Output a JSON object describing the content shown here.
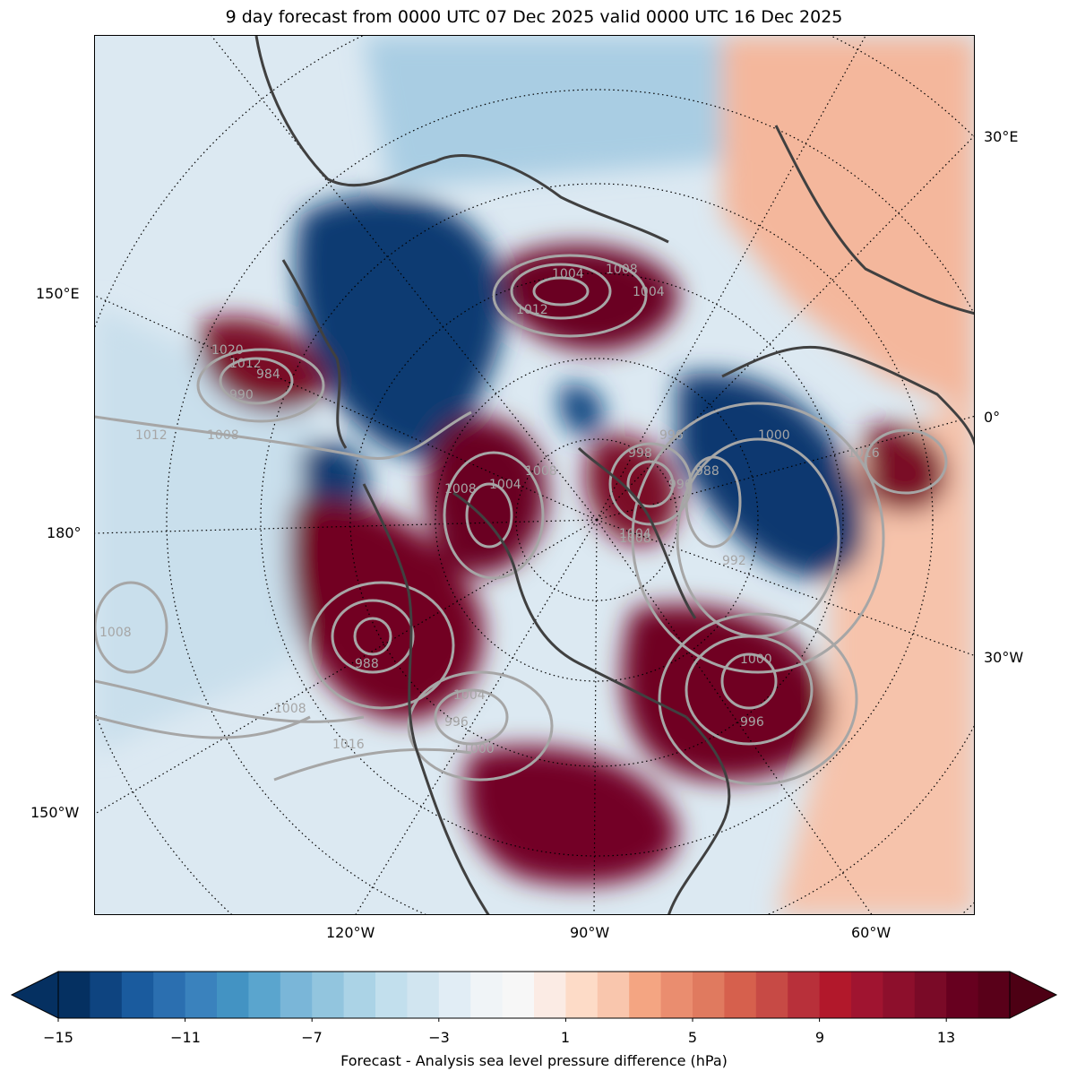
{
  "title": "9 day forecast from 0000 UTC 07 Dec 2025 valid 0000 UTC 16 Dec 2025",
  "map": {
    "projection": "north-polar-stereographic",
    "longitude_labels": [
      "30°E",
      "0°",
      "30°W",
      "150°E",
      "180°",
      "150°W",
      "120°W",
      "90°W",
      "60°W"
    ],
    "contour_labels": [
      "1004",
      "1008",
      "1012",
      "1008",
      "1004",
      "1008",
      "998",
      "996",
      "988",
      "1000",
      "1008",
      "992",
      "988",
      "1004",
      "1000",
      "996",
      "1012",
      "1016",
      "1008",
      "1016",
      "1008",
      "1012",
      "1008",
      "1020",
      "984",
      "990",
      "1004",
      "1004",
      "1000",
      "996",
      "996"
    ],
    "coastline_color": "#404040",
    "contour_color": "#a6a6a6"
  },
  "colorbar": {
    "label": "Forecast - Analysis sea level pressure difference (hPa)",
    "tick_labels": [
      "−15",
      "−11",
      "−7",
      "−3",
      "1",
      "5",
      "9",
      "13"
    ],
    "levels": [
      -15,
      -14,
      -13,
      -12,
      -11,
      -10,
      -9,
      -8,
      -7,
      -6,
      -5,
      -4,
      -3,
      -2,
      -1,
      0,
      1,
      2,
      3,
      4,
      5,
      6,
      7,
      8,
      9,
      10,
      11,
      12,
      13,
      14,
      15
    ],
    "colors": [
      "#053061",
      "#0e4480",
      "#1a5b9e",
      "#2b6fb0",
      "#3a82bd",
      "#4393c3",
      "#5aa5ce",
      "#7ab6d8",
      "#92c5de",
      "#abd3e6",
      "#c2dfed",
      "#d1e5f0",
      "#e1edf5",
      "#f0f4f7",
      "#f7f7f7",
      "#fbebe4",
      "#fddbc7",
      "#f9c6ad",
      "#f4a582",
      "#ea8d6f",
      "#e07a5f",
      "#d6604d",
      "#c74a45",
      "#b8303a",
      "#b2182b",
      "#a01430",
      "#8d0f2c",
      "#7a0a27",
      "#67001f",
      "#590019"
    ]
  }
}
